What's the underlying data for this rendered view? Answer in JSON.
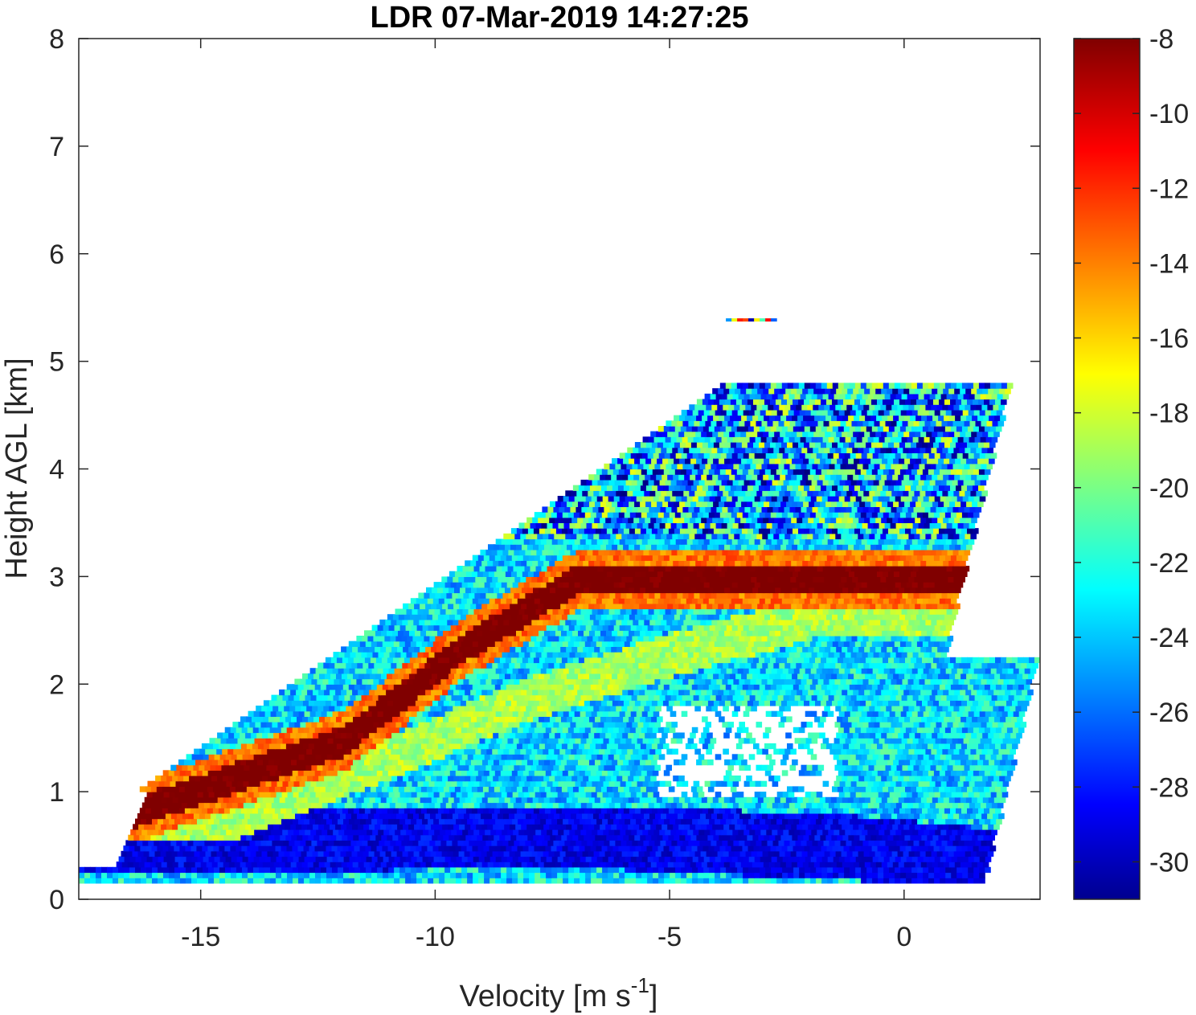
{
  "chart_data": {
    "type": "heatmap",
    "title": "LDR 07-Mar-2019 14:27:25",
    "xlabel": "Velocity [m s",
    "xlabel_sup": "-1",
    "xlabel_close": "]",
    "ylabel": "Height AGL [km]",
    "xlim": [
      -17.6,
      2.9
    ],
    "ylim": [
      0,
      8
    ],
    "xticks": [
      -15,
      -10,
      -5,
      0
    ],
    "xtick_labels": [
      "-15",
      "-10",
      "-5",
      "0"
    ],
    "yticks": [
      0,
      1,
      2,
      3,
      4,
      5,
      6,
      7,
      8
    ],
    "ytick_labels": [
      "0",
      "1",
      "2",
      "3",
      "4",
      "5",
      "6",
      "7",
      "8"
    ],
    "colorbar": {
      "limits": [
        -31,
        -8
      ],
      "colormap": "jet",
      "ticks": [
        -8,
        -10,
        -12,
        -14,
        -16,
        -18,
        -20,
        -22,
        -24,
        -26,
        -28,
        -30
      ],
      "tick_labels": [
        "-8",
        "-10",
        "-12",
        "-14",
        "-16",
        "-18",
        "-20",
        "-22",
        "-24",
        "-26",
        "-28",
        "-30"
      ]
    },
    "grid": false,
    "regions": [
      {
        "desc": "main spectrum ridge (high LDR)",
        "x": [
          -16.5,
          -12.0,
          -10.8,
          -9.5,
          -7.0
        ],
        "y": [
          0.78,
          1.45,
          1.85,
          2.3,
          2.95
        ],
        "ldr": -8.5
      },
      {
        "desc": "secondary ridge",
        "x": [
          -14.5,
          -11.0,
          -8.0,
          -5.0,
          -2.0
        ],
        "y": [
          0.7,
          1.3,
          1.85,
          2.25,
          2.6
        ],
        "ldr": -17
      },
      {
        "desc": "low-level broad region",
        "x": [
          -16.0,
          -11.0,
          -6.0,
          -1.0,
          2.5
        ],
        "y": [
          0.5,
          0.55,
          0.55,
          0.45,
          0.3
        ],
        "ldr": -27
      },
      {
        "desc": "upper noisy region",
        "x": [
          -8.0,
          -4.0,
          -1.0,
          1.0
        ],
        "y": [
          3.6,
          4.1,
          4.4,
          4.6
        ],
        "ldr": -24
      },
      {
        "desc": "isolated feature",
        "x": [
          -3.8,
          -2.8
        ],
        "y": [
          5.38,
          5.38
        ],
        "ldr": -20
      }
    ]
  }
}
